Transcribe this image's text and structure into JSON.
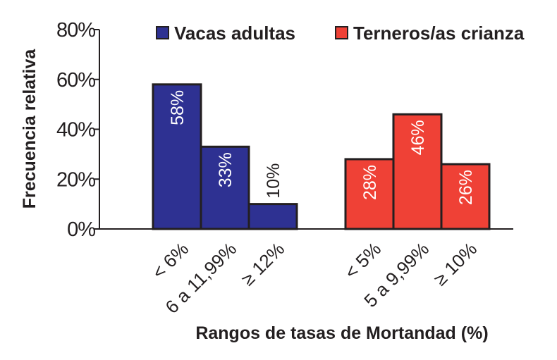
{
  "chart_data": {
    "type": "bar",
    "ylabel": "Frecuencia relativa",
    "xlabel": "Rangos de tasas de Mortandad (%)",
    "ylim": [
      0,
      80
    ],
    "yticks": [
      "0%",
      "20%",
      "40%",
      "60%",
      "80%"
    ],
    "yticks_values": [
      0,
      20,
      40,
      60,
      80
    ],
    "legend_position": "top",
    "series": [
      {
        "name": "Vacas adultas",
        "color": "#2e3192",
        "categories": [
          "< 6%",
          "6 a 11,99%",
          "≥ 12%"
        ],
        "values": [
          58,
          33,
          10
        ],
        "labels": [
          "58%",
          "33%",
          "10%"
        ]
      },
      {
        "name": "Terneros/as crianza",
        "color": "#ef4136",
        "categories": [
          "< 5%",
          "5 a 9,99%",
          "≥ 10%"
        ],
        "values": [
          28,
          46,
          26
        ],
        "labels": [
          "28%",
          "46%",
          "26%"
        ]
      }
    ]
  }
}
